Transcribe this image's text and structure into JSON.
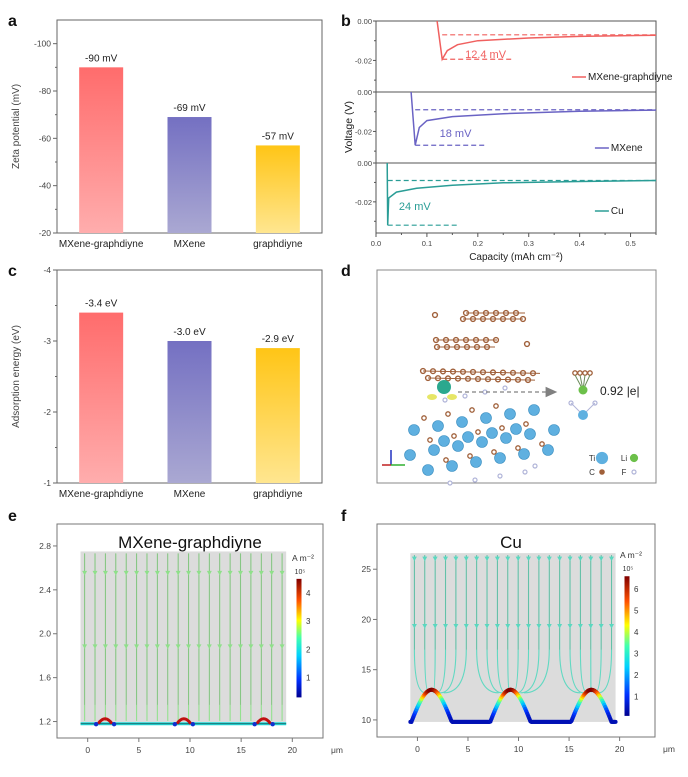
{
  "panels": {
    "a": {
      "label": "a"
    },
    "b": {
      "label": "b"
    },
    "c": {
      "label": "c"
    },
    "d": {
      "label": "d"
    },
    "e": {
      "label": "e"
    },
    "f": {
      "label": "f"
    }
  },
  "chart_data": [
    {
      "id": "a",
      "type": "bar",
      "title": "",
      "xlabel": "",
      "ylabel": "Zeta potential (mV)",
      "categories": [
        "MXene-graphdiyne",
        "MXene",
        "graphdiyne"
      ],
      "values": [
        -90,
        -69,
        -57
      ],
      "data_labels": [
        "-90 mV",
        "-69 mV",
        "-57 mV"
      ],
      "ylim": [
        -20,
        -110
      ],
      "yticks": [
        -20,
        -40,
        -60,
        -80,
        -100
      ],
      "ytick_labels": [
        "-20",
        "-40",
        "-60",
        "-80",
        "-100"
      ],
      "colors": [
        "#ff6b6b",
        "#7470c0",
        "#ffc61a"
      ],
      "grid": false
    },
    {
      "id": "b",
      "type": "line",
      "xlabel": "Capacity (mAh cm⁻²)",
      "ylabel": "Voltage (V)",
      "xlim": [
        0,
        0.55
      ],
      "xticks": [
        0.0,
        0.1,
        0.2,
        0.3,
        0.4,
        0.5
      ],
      "xtick_labels": [
        "0.0",
        "0.1",
        "0.2",
        "0.3",
        "0.4",
        "0.5"
      ],
      "ylim": [
        -0.035,
        0.0
      ],
      "yticks": [
        0.0,
        -0.02
      ],
      "ytick_labels": [
        "0.00",
        "-0.02"
      ],
      "series": [
        {
          "name": "MXene-graphdiyne",
          "color": "#f0605f",
          "overpotential_label": "12.4 mV",
          "nucleation_x": 0.13,
          "min_v": -0.0194,
          "plateau_v": -0.007,
          "points": [
            [
              0.12,
              0.0
            ],
            [
              0.13,
              -0.0194
            ],
            [
              0.14,
              -0.015
            ],
            [
              0.16,
              -0.012
            ],
            [
              0.2,
              -0.01
            ],
            [
              0.3,
              -0.0086
            ],
            [
              0.4,
              -0.0078
            ],
            [
              0.55,
              -0.0072
            ]
          ]
        },
        {
          "name": "MXene",
          "color": "#6a63c4",
          "overpotential_label": "18 mV",
          "nucleation_x": 0.077,
          "min_v": -0.027,
          "plateau_v": -0.009,
          "points": [
            [
              0.069,
              0.0
            ],
            [
              0.077,
              -0.027
            ],
            [
              0.085,
              -0.018
            ],
            [
              0.1,
              -0.0145
            ],
            [
              0.15,
              -0.0125
            ],
            [
              0.25,
              -0.011
            ],
            [
              0.4,
              -0.0098
            ],
            [
              0.55,
              -0.0092
            ]
          ]
        },
        {
          "name": "Cu",
          "color": "#2a9d96",
          "overpotential_label": "24 mV",
          "nucleation_x": 0.023,
          "min_v": -0.032,
          "plateau_v": -0.009,
          "points": [
            [
              0.022,
              0.0
            ],
            [
              0.023,
              -0.032
            ],
            [
              0.025,
              -0.018
            ],
            [
              0.04,
              -0.015
            ],
            [
              0.08,
              -0.013
            ],
            [
              0.15,
              -0.0115
            ],
            [
              0.25,
              -0.0102
            ],
            [
              0.4,
              -0.0095
            ],
            [
              0.55,
              -0.009
            ]
          ]
        }
      ]
    },
    {
      "id": "c",
      "type": "bar",
      "xlabel": "",
      "ylabel": "Adsorption energy (eV)",
      "categories": [
        "MXene-graphdiyne",
        "MXene",
        "graphdiyne"
      ],
      "values": [
        -3.4,
        -3.0,
        -2.9
      ],
      "data_labels": [
        "-3.4 eV",
        "-3.0 eV",
        "-2.9 eV"
      ],
      "ylim": [
        -1,
        -4
      ],
      "yticks": [
        -1,
        -2,
        -3,
        -4
      ],
      "ytick_labels": [
        "-1",
        "-2",
        "-3",
        "-4"
      ],
      "colors": [
        "#ff6b6b",
        "#7470c0",
        "#ffc61a"
      ],
      "grid": false
    },
    {
      "id": "e",
      "type": "heatmap",
      "title": "MXene-graphdiyne",
      "xlabel": "μm",
      "xlim": [
        -3,
        23
      ],
      "xticks": [
        0,
        5,
        10,
        15,
        20
      ],
      "ylim": [
        1.05,
        3.0
      ],
      "yticks": [
        1.2,
        1.6,
        2.0,
        2.4,
        2.8
      ],
      "ytick_labels": [
        "1.2",
        "1.6",
        "2.0",
        "2.4",
        "2.8"
      ],
      "colorbar": {
        "unit": "A m⁻²",
        "scale": "10⁵",
        "ticks": [
          1,
          2,
          3,
          4
        ],
        "range": [
          0.3,
          4.5
        ]
      },
      "domain": {
        "x": [
          -0.7,
          19.4
        ],
        "y": [
          1.17,
          2.75
        ]
      },
      "bumps_x": [
        1.7,
        9.4,
        17.2
      ],
      "streamlines": 20
    },
    {
      "id": "f",
      "type": "heatmap",
      "title": "Cu",
      "xlabel": "μm",
      "xlim": [
        -4,
        23.5
      ],
      "xticks": [
        0,
        5,
        10,
        15,
        20
      ],
      "ylim": [
        8.3,
        29.5
      ],
      "yticks": [
        10,
        15,
        20,
        25
      ],
      "ytick_labels": [
        "10",
        "15",
        "20",
        "25"
      ],
      "colorbar": {
        "unit": "A m⁻²",
        "scale": "10⁵",
        "ticks": [
          1,
          2,
          3,
          4,
          5,
          6
        ],
        "range": [
          0.1,
          6.6
        ]
      },
      "domain": {
        "x": [
          -0.7,
          19.6
        ],
        "y": [
          9.8,
          26.6
        ]
      },
      "bumps_x": [
        1.4,
        9.2,
        17.2
      ],
      "bump_top": 13.0,
      "streamlines": 20
    }
  ],
  "structure_d": {
    "charge_label": "0.92 |e|",
    "legend": [
      {
        "symbol": "Ti",
        "color": "#5fb0e0"
      },
      {
        "symbol": "Li",
        "color": "#6cc04a"
      },
      {
        "symbol": "C",
        "color": "#a0603a"
      },
      {
        "symbol": "F",
        "color": "#b0b4d8"
      }
    ]
  }
}
